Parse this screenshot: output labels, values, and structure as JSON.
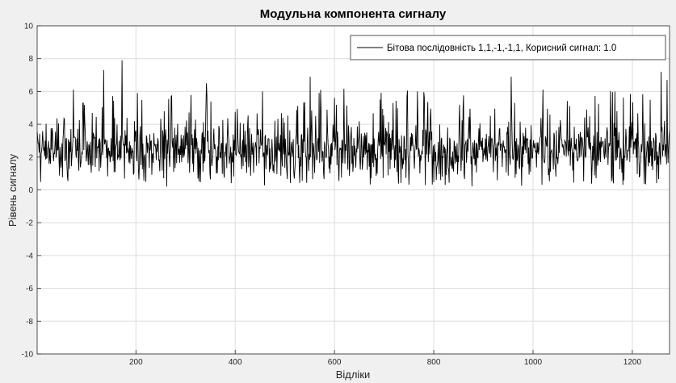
{
  "chart_data": {
    "type": "line",
    "title": "Модульна компонента сигналу",
    "xlabel": "Відліки",
    "ylabel": "Рівень сигналу",
    "xlim": [
      1,
      1275
    ],
    "ylim": [
      -10,
      10
    ],
    "xticks": [
      200,
      400,
      600,
      800,
      1000,
      1200
    ],
    "yticks": [
      -10,
      -8,
      -6,
      -4,
      -2,
      0,
      2,
      4,
      6,
      8,
      10
    ],
    "grid": true,
    "legend_position": "top-right",
    "series": [
      {
        "name": "Бітова послідовність 1,1,-1,-1,1, Корисний сигнал:  1.0",
        "color": "#000000",
        "n_points": 1275,
        "min": 0.1,
        "max": 7.9,
        "typical_range": [
          1.0,
          4.0
        ],
        "peaks": [
          {
            "x": 135,
            "y": 7.3
          },
          {
            "x": 172,
            "y": 7.9
          },
          {
            "x": 342,
            "y": 6.5
          },
          {
            "x": 455,
            "y": 6.0
          },
          {
            "x": 551,
            "y": 6.9
          },
          {
            "x": 956,
            "y": 6.9
          },
          {
            "x": 1258,
            "y": 7.2
          },
          {
            "x": 1270,
            "y": 6.7
          }
        ]
      }
    ]
  }
}
